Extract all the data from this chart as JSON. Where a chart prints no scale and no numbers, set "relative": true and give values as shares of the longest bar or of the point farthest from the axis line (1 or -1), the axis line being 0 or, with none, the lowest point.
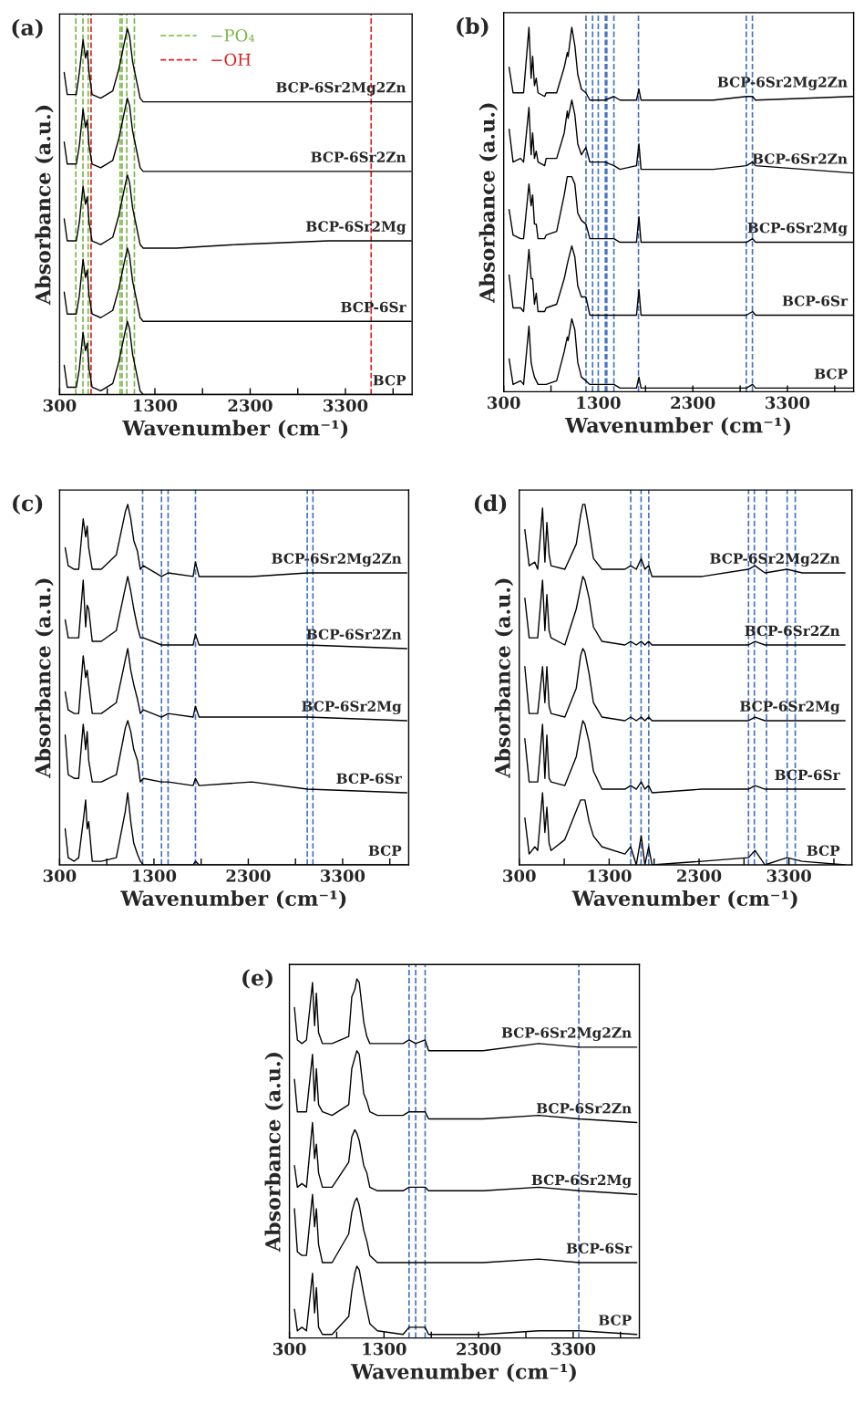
{
  "chart_data": [
    {
      "type": "line",
      "title": "(a)",
      "xlabel": "Wavenumber (cm⁻¹)",
      "ylabel": "Absorbance (a.u.)",
      "relative": true,
      "tick_labels": "x",
      "grid": false,
      "legend": "top",
      "xlim": [
        300,
        4000
      ],
      "xticks": [
        300,
        {
          "value": 800,
          "label": null
        },
        1300,
        {
          "value": 1800,
          "label": null
        },
        2300,
        {
          "value": 2800,
          "label": null
        },
        3300,
        {
          "value": 3800,
          "label": null
        }
      ],
      "x": [
        348,
        380,
        428,
        475,
        507,
        546,
        571,
        590,
        609,
        641,
        731,
        858,
        922,
        970,
        1011,
        1034,
        1066,
        1098,
        1145,
        1177,
        1528,
        2166,
        3123,
        3990
      ],
      "series": [
        {
          "name": "BCP-6Sr2Mg2Zn",
          "color": "#000000",
          "values": [
            0.88,
            0.82,
            0.82,
            0.82,
            0.88,
            0.97,
            0.92,
            0.94,
            0.88,
            0.82,
            0.81,
            0.83,
            0.89,
            0.95,
            1.0,
            0.98,
            0.91,
            0.87,
            0.81,
            0.8,
            0.8,
            0.8,
            0.8,
            0.8
          ]
        },
        {
          "name": "BCP-6Sr2Zn",
          "color": "#000000",
          "values": [
            0.69,
            0.63,
            0.63,
            0.63,
            0.68,
            0.78,
            0.73,
            0.75,
            0.68,
            0.63,
            0.62,
            0.64,
            0.7,
            0.76,
            0.81,
            0.79,
            0.72,
            0.68,
            0.62,
            0.61,
            0.61,
            0.61,
            0.61,
            0.61
          ]
        },
        {
          "name": "BCP-6Sr2Mg",
          "color": "#000000",
          "values": [
            0.48,
            0.42,
            0.42,
            0.42,
            0.47,
            0.57,
            0.52,
            0.54,
            0.47,
            0.42,
            0.41,
            0.43,
            0.49,
            0.55,
            0.6,
            0.58,
            0.51,
            0.47,
            0.41,
            0.4,
            0.4,
            0.41,
            0.42,
            0.42
          ]
        },
        {
          "name": "BCP-6Sr",
          "color": "#000000",
          "values": [
            0.28,
            0.22,
            0.22,
            0.22,
            0.27,
            0.37,
            0.32,
            0.34,
            0.27,
            0.22,
            0.21,
            0.23,
            0.29,
            0.35,
            0.4,
            0.38,
            0.31,
            0.27,
            0.21,
            0.2,
            0.2,
            0.2,
            0.2,
            0.2
          ]
        },
        {
          "name": "BCP",
          "color": "#000000",
          "values": [
            0.08,
            0.02,
            0.02,
            0.02,
            0.07,
            0.17,
            0.12,
            0.14,
            0.07,
            0.02,
            0.01,
            0.03,
            0.09,
            0.15,
            0.2,
            0.18,
            0.11,
            0.07,
            0.01,
            0,
            0,
            0,
            0,
            0
          ]
        }
      ],
      "ref_lines": [
        {
          "axis": "x",
          "value": 470,
          "label": "−PO₄",
          "color": "#7ab648",
          "line_style": "dashed"
        },
        {
          "axis": "x",
          "value": 545,
          "color": "#7ab648",
          "line_style": "dashed"
        },
        {
          "axis": "x",
          "value": 600,
          "color": "#7ab648",
          "line_style": "dashed"
        },
        {
          "axis": "x",
          "value": 935,
          "color": "#7ab648",
          "line_style": "dashed"
        },
        {
          "axis": "x",
          "value": 955,
          "color": "#7ab648",
          "line_style": "dashed"
        },
        {
          "axis": "x",
          "value": 1005,
          "color": "#7ab648",
          "line_style": "dashed"
        },
        {
          "axis": "x",
          "value": 1085,
          "color": "#7ab648",
          "line_style": "dashed"
        },
        {
          "axis": "x",
          "value": 630,
          "label": "−OH",
          "color": "#e02020",
          "line_style": "dashed"
        },
        {
          "axis": "x",
          "value": 3570,
          "color": "#e02020",
          "line_style": "dashed"
        }
      ]
    },
    {
      "type": "line",
      "title": "(b)",
      "xlabel": "Wavenumber (cm⁻¹)",
      "ylabel": "Absorbance (a.u.)",
      "relative": true,
      "tick_labels": "x",
      "grid": false,
      "xlim": [
        300,
        4000
      ],
      "xticks": [
        300,
        {
          "value": 800,
          "label": null
        },
        1300,
        {
          "value": 1800,
          "label": null
        },
        2300,
        {
          "value": 2800,
          "label": null
        },
        3300,
        {
          "value": 3800,
          "label": null
        }
      ],
      "x": [
        357,
        399,
        478,
        510,
        567,
        590,
        606,
        625,
        644,
        663,
        733,
        749,
        860,
        940,
        972,
        981,
        1020,
        1052,
        1083,
        1122,
        1169,
        1211,
        1370,
        1466,
        1529,
        1704,
        1730,
        1752,
        2517,
        2867,
        2931,
        2963,
        3990
      ],
      "series": [
        {
          "name": "BCP-6Sr2Mg2Zn",
          "color": "#000000",
          "values": [
            0.89,
            0.82,
            0.82,
            0.82,
            1.0,
            0.86,
            0.92,
            0.84,
            0.86,
            0.82,
            0.81,
            0.82,
            0.82,
            0.89,
            0.93,
            0.92,
            1.0,
            0.95,
            0.87,
            0.83,
            0.82,
            0.8,
            0.8,
            0.81,
            0.8,
            0.8,
            0.83,
            0.8,
            0.8,
            0.81,
            0.81,
            0.8,
            0.81
          ]
        },
        {
          "name": "BCP-6Sr2Zn",
          "color": "#000000",
          "values": [
            0.72,
            0.63,
            0.64,
            0.63,
            0.78,
            0.65,
            0.71,
            0.64,
            0.66,
            0.63,
            0.62,
            0.64,
            0.64,
            0.71,
            0.77,
            0.75,
            0.8,
            0.76,
            0.68,
            0.65,
            0.67,
            0.63,
            0.63,
            0.62,
            0.61,
            0.62,
            0.68,
            0.61,
            0.61,
            0.62,
            0.63,
            0.62,
            0.6
          ]
        },
        {
          "name": "BCP-6Sr2Mg",
          "color": "#000000",
          "values": [
            0.5,
            0.43,
            0.42,
            0.42,
            0.57,
            0.51,
            0.54,
            0.46,
            0.46,
            0.42,
            0.42,
            0.43,
            0.44,
            0.54,
            0.59,
            0.59,
            0.59,
            0.57,
            0.49,
            0.47,
            0.46,
            0.42,
            0.42,
            0.42,
            0.41,
            0.41,
            0.48,
            0.41,
            0.41,
            0.41,
            0.42,
            0.41,
            0.41
          ]
        },
        {
          "name": "BCP-6Sr",
          "color": "#000000",
          "values": [
            0.32,
            0.23,
            0.23,
            0.22,
            0.39,
            0.31,
            0.31,
            0.24,
            0.27,
            0.22,
            0.22,
            0.23,
            0.24,
            0.31,
            0.35,
            0.36,
            0.4,
            0.37,
            0.29,
            0.26,
            0.26,
            0.21,
            0.21,
            0.21,
            0.21,
            0.21,
            0.28,
            0.21,
            0.21,
            0.21,
            0.22,
            0.21,
            0.21
          ]
        },
        {
          "name": "BCP",
          "color": "#000000",
          "values": [
            0.09,
            0.02,
            0.03,
            0.02,
            0.18,
            0.08,
            0.06,
            0.04,
            0.03,
            0.02,
            0.02,
            0.02,
            0.03,
            0.11,
            0.15,
            0.14,
            0.2,
            0.17,
            0.08,
            0.04,
            0.03,
            0.02,
            0.02,
            0.02,
            0.01,
            0.01,
            0.04,
            0.01,
            0.01,
            0.01,
            0.02,
            0.01,
            0.01
          ]
        }
      ],
      "ref_lines": [
        {
          "axis": "x",
          "value": 1170,
          "color": "#4472c4",
          "line_style": "dashed"
        },
        {
          "axis": "x",
          "value": 1240,
          "color": "#4472c4",
          "line_style": "dashed"
        },
        {
          "axis": "x",
          "value": 1300,
          "color": "#4472c4",
          "line_style": "dashed"
        },
        {
          "axis": "x",
          "value": 1375,
          "color": "#4472c4",
          "line_style": "dashed"
        },
        {
          "axis": "x",
          "value": 1390,
          "color": "#4472c4",
          "line_style": "dashed"
        },
        {
          "axis": "x",
          "value": 1465,
          "color": "#4472c4",
          "line_style": "dashed"
        },
        {
          "axis": "x",
          "value": 1725,
          "color": "#4472c4",
          "line_style": "dashed"
        },
        {
          "axis": "x",
          "value": 2865,
          "color": "#4472c4",
          "line_style": "dashed"
        },
        {
          "axis": "x",
          "value": 2930,
          "color": "#4472c4",
          "line_style": "dashed"
        }
      ]
    },
    {
      "type": "line",
      "title": "(c)",
      "xlabel": "Wavenumber (cm⁻¹)",
      "ylabel": "Absorbance (a.u.)",
      "relative": true,
      "tick_labels": "x",
      "grid": false,
      "xlim": [
        300,
        4000
      ],
      "xticks": [
        300,
        {
          "value": 800,
          "label": null
        },
        1300,
        {
          "value": 1800,
          "label": null
        },
        2300,
        {
          "value": 2800,
          "label": null
        },
        3300,
        {
          "value": 3800,
          "label": null
        }
      ],
      "x": [
        359,
        391,
        455,
        502,
        550,
        576,
        592,
        608,
        646,
        742,
        901,
        997,
        1022,
        1054,
        1086,
        1125,
        1156,
        1188,
        1380,
        1450,
        1715,
        1740,
        1778,
        2337,
        2927,
        3980
      ],
      "series": [
        {
          "name": "BCP-6Sr2Mg2Zn",
          "color": "#000000",
          "values": [
            0.88,
            0.83,
            0.82,
            0.82,
            0.96,
            0.91,
            0.94,
            0.88,
            0.82,
            0.82,
            0.86,
            0.98,
            1.0,
            0.96,
            0.9,
            0.87,
            0.82,
            0.83,
            0.8,
            0.81,
            0.8,
            0.84,
            0.8,
            0.8,
            0.81,
            0.81
          ]
        },
        {
          "name": "BCP-6Sr2Zn",
          "color": "#000000",
          "values": [
            0.68,
            0.63,
            0.63,
            0.63,
            0.79,
            0.66,
            0.72,
            0.71,
            0.62,
            0.62,
            0.65,
            0.77,
            0.8,
            0.76,
            0.71,
            0.66,
            0.63,
            0.63,
            0.61,
            0.61,
            0.61,
            0.64,
            0.61,
            0.61,
            0.61,
            0.6
          ]
        },
        {
          "name": "BCP-6Sr2Mg",
          "color": "#000000",
          "values": [
            0.48,
            0.43,
            0.42,
            0.42,
            0.58,
            0.52,
            0.54,
            0.5,
            0.42,
            0.42,
            0.45,
            0.57,
            0.6,
            0.54,
            0.5,
            0.46,
            0.42,
            0.43,
            0.41,
            0.42,
            0.41,
            0.44,
            0.41,
            0.41,
            0.41,
            0.4
          ]
        },
        {
          "name": "BCP-6Sr",
          "color": "#000000",
          "values": [
            0.36,
            0.25,
            0.24,
            0.24,
            0.39,
            0.32,
            0.37,
            0.29,
            0.23,
            0.23,
            0.25,
            0.38,
            0.4,
            0.37,
            0.32,
            0.29,
            0.23,
            0.24,
            0.23,
            0.23,
            0.22,
            0.24,
            0.22,
            0.23,
            0.21,
            0.2
          ]
        },
        {
          "name": "BCP",
          "color": "#000000",
          "values": [
            0.1,
            0.02,
            0.01,
            0.02,
            0.12,
            0.18,
            0.1,
            0.12,
            0.01,
            0.01,
            0.02,
            0.15,
            0.2,
            0.12,
            0.06,
            0.03,
            0.01,
            0,
            0,
            0,
            0,
            0.01,
            0,
            0,
            0,
            0
          ]
        }
      ],
      "ref_lines": [
        {
          "axis": "x",
          "value": 1180,
          "color": "#4472c4",
          "line_style": "dashed"
        },
        {
          "axis": "x",
          "value": 1380,
          "color": "#4472c4",
          "line_style": "dashed"
        },
        {
          "axis": "x",
          "value": 1450,
          "color": "#4472c4",
          "line_style": "dashed"
        },
        {
          "axis": "x",
          "value": 1740,
          "color": "#4472c4",
          "line_style": "dashed"
        },
        {
          "axis": "x",
          "value": 2925,
          "color": "#4472c4",
          "line_style": "dashed"
        },
        {
          "axis": "x",
          "value": 2985,
          "color": "#4472c4",
          "line_style": "dashed"
        }
      ]
    },
    {
      "type": "line",
      "title": "(d)",
      "xlabel": "Wavenumber (cm⁻¹)",
      "ylabel": "Absorbance (a.u.)",
      "relative": true,
      "tick_labels": "x",
      "grid": false,
      "xlim": [
        300,
        4000
      ],
      "xticks": [
        300,
        {
          "value": 800,
          "label": null
        },
        1300,
        {
          "value": 1800,
          "label": null
        },
        2300,
        {
          "value": 2800,
          "label": null
        },
        3300,
        {
          "value": 3800,
          "label": null
        }
      ],
      "x": [
        362,
        410,
        473,
        505,
        559,
        585,
        607,
        632,
        654,
        807,
        934,
        982,
        1007,
        1030,
        1077,
        1125,
        1220,
        1475,
        1539,
        1602,
        1656,
        1698,
        1739,
        1777,
        2334,
        2849,
        2922,
        3033,
        3278,
        3447,
        3924
      ],
      "series": [
        {
          "name": "BCP-6Sr2Mg2Zn",
          "color": "#000000",
          "values": [
            0.93,
            0.83,
            0.84,
            0.82,
            0.99,
            0.84,
            0.95,
            0.86,
            0.83,
            0.82,
            0.89,
            0.97,
            1.0,
            1.0,
            0.93,
            0.85,
            0.82,
            0.82,
            0.83,
            0.82,
            0.85,
            0.82,
            0.83,
            0.8,
            0.8,
            0.82,
            0.83,
            0.81,
            0.82,
            0.81,
            0.81
          ]
        },
        {
          "name": "BCP-6Sr2Zn",
          "color": "#000000",
          "values": [
            0.74,
            0.63,
            0.63,
            0.63,
            0.79,
            0.65,
            0.75,
            0.65,
            0.63,
            0.61,
            0.71,
            0.77,
            0.8,
            0.79,
            0.74,
            0.66,
            0.62,
            0.61,
            0.62,
            0.61,
            0.62,
            0.61,
            0.62,
            0.61,
            0.61,
            0.61,
            0.62,
            0.61,
            0.61,
            0.61,
            0.61
          ]
        },
        {
          "name": "BCP-6Sr2Mg",
          "color": "#000000",
          "values": [
            0.55,
            0.42,
            0.42,
            0.42,
            0.55,
            0.45,
            0.55,
            0.44,
            0.42,
            0.41,
            0.49,
            0.58,
            0.6,
            0.59,
            0.53,
            0.45,
            0.41,
            0.4,
            0.41,
            0.4,
            0.41,
            0.4,
            0.41,
            0.4,
            0.4,
            0.4,
            0.41,
            0.4,
            0.4,
            0.4,
            0.4
          ]
        },
        {
          "name": "BCP-6Sr",
          "color": "#000000",
          "values": [
            0.35,
            0.23,
            0.23,
            0.23,
            0.39,
            0.24,
            0.36,
            0.24,
            0.23,
            0.22,
            0.3,
            0.37,
            0.4,
            0.39,
            0.34,
            0.26,
            0.21,
            0.21,
            0.22,
            0.21,
            0.23,
            0.21,
            0.22,
            0.2,
            0.21,
            0.21,
            0.22,
            0.21,
            0.21,
            0.21,
            0.21
          ]
        },
        {
          "name": "BCP",
          "color": "#000000",
          "values": [
            0.13,
            0.03,
            0.05,
            0.04,
            0.2,
            0.09,
            0.16,
            0.06,
            0.04,
            0.07,
            0.15,
            0.18,
            0.18,
            0.18,
            0.12,
            0.08,
            0.05,
            0.03,
            0.05,
            0,
            0.08,
            0,
            0.05,
            0,
            0.01,
            0.02,
            0.04,
            0,
            0.02,
            0.01,
            0
          ]
        }
      ],
      "ref_lines": [
        {
          "axis": "x",
          "value": 1540,
          "color": "#4472c4",
          "line_style": "dashed"
        },
        {
          "axis": "x",
          "value": 1655,
          "color": "#4472c4",
          "line_style": "dashed"
        },
        {
          "axis": "x",
          "value": 1740,
          "color": "#4472c4",
          "line_style": "dashed"
        },
        {
          "axis": "x",
          "value": 2850,
          "color": "#4472c4",
          "line_style": "dashed"
        },
        {
          "axis": "x",
          "value": 2915,
          "color": "#4472c4",
          "line_style": "dashed"
        },
        {
          "axis": "x",
          "value": 3050,
          "color": "#4472c4",
          "line_style": "dashed"
        },
        {
          "axis": "x",
          "value": 3280,
          "color": "#4472c4",
          "line_style": "dashed"
        },
        {
          "axis": "x",
          "value": 3370,
          "color": "#4472c4",
          "line_style": "dashed"
        }
      ]
    },
    {
      "type": "line",
      "title": "(e)",
      "xlabel": "Wavenumber (cm⁻¹)",
      "ylabel": "Absorbance (a.u.)",
      "relative": true,
      "tick_labels": "x",
      "grid": false,
      "xlim": [
        300,
        4000
      ],
      "xticks": [
        300,
        {
          "value": 800,
          "label": null
        },
        1300,
        {
          "value": 1800,
          "label": null
        },
        2300,
        {
          "value": 2800,
          "label": null
        },
        3300,
        {
          "value": 3800,
          "label": null
        }
      ],
      "x": [
        353,
        384,
        432,
        480,
        544,
        566,
        585,
        608,
        649,
        751,
        927,
        959,
        991,
        1013,
        1038,
        1086,
        1118,
        1150,
        1230,
        1501,
        1565,
        1635,
        1734,
        1772,
        2346,
        2936,
        3367,
        3973
      ],
      "series": [
        {
          "name": "BCP-6Sr2Mg2Zn",
          "color": "#000000",
          "values": [
            0.92,
            0.83,
            0.82,
            0.83,
            0.99,
            0.87,
            0.96,
            0.85,
            0.82,
            0.82,
            0.84,
            0.95,
            0.97,
            1.0,
            0.99,
            0.88,
            0.84,
            0.82,
            0.82,
            0.82,
            0.83,
            0.82,
            0.83,
            0.8,
            0.8,
            0.82,
            0.81,
            0.81
          ]
        },
        {
          "name": "BCP-6Sr2Zn",
          "color": "#000000",
          "values": [
            0.72,
            0.63,
            0.63,
            0.63,
            0.79,
            0.66,
            0.75,
            0.65,
            0.63,
            0.62,
            0.65,
            0.75,
            0.78,
            0.8,
            0.79,
            0.68,
            0.66,
            0.63,
            0.62,
            0.62,
            0.63,
            0.63,
            0.63,
            0.61,
            0.61,
            0.62,
            0.61,
            0.6
          ]
        },
        {
          "name": "BCP-6Sr2Mg",
          "color": "#000000",
          "values": [
            0.48,
            0.42,
            0.43,
            0.42,
            0.6,
            0.5,
            0.54,
            0.46,
            0.42,
            0.42,
            0.49,
            0.56,
            0.58,
            0.57,
            0.55,
            0.48,
            0.46,
            0.42,
            0.41,
            0.41,
            0.42,
            0.42,
            0.42,
            0.41,
            0.41,
            0.42,
            0.41,
            0.4
          ]
        },
        {
          "name": "BCP-6Sr",
          "color": "#000000",
          "values": [
            0.36,
            0.24,
            0.23,
            0.23,
            0.4,
            0.31,
            0.36,
            0.26,
            0.21,
            0.21,
            0.29,
            0.35,
            0.38,
            0.39,
            0.37,
            0.3,
            0.27,
            0.23,
            0.21,
            0.21,
            0.21,
            0.21,
            0.21,
            0.21,
            0.21,
            0.22,
            0.21,
            0.21
          ]
        },
        {
          "name": "BCP",
          "color": "#000000",
          "values": [
            0.08,
            0.02,
            0.03,
            0.02,
            0.18,
            0.07,
            0.14,
            0.03,
            0.01,
            0.01,
            0.06,
            0.13,
            0.18,
            0.2,
            0.19,
            0.12,
            0.08,
            0.04,
            0.02,
            0.01,
            0.03,
            0.03,
            0.03,
            0.01,
            0.01,
            0.02,
            0.02,
            0.01
          ]
        }
      ],
      "ref_lines": [
        {
          "axis": "x",
          "value": 1565,
          "color": "#4472c4",
          "line_style": "dashed"
        },
        {
          "axis": "x",
          "value": 1635,
          "color": "#4472c4",
          "line_style": "dashed"
        },
        {
          "axis": "x",
          "value": 1735,
          "color": "#4472c4",
          "line_style": "dashed"
        },
        {
          "axis": "x",
          "value": 3360,
          "color": "#4472c4",
          "line_style": "dashed"
        }
      ]
    }
  ]
}
